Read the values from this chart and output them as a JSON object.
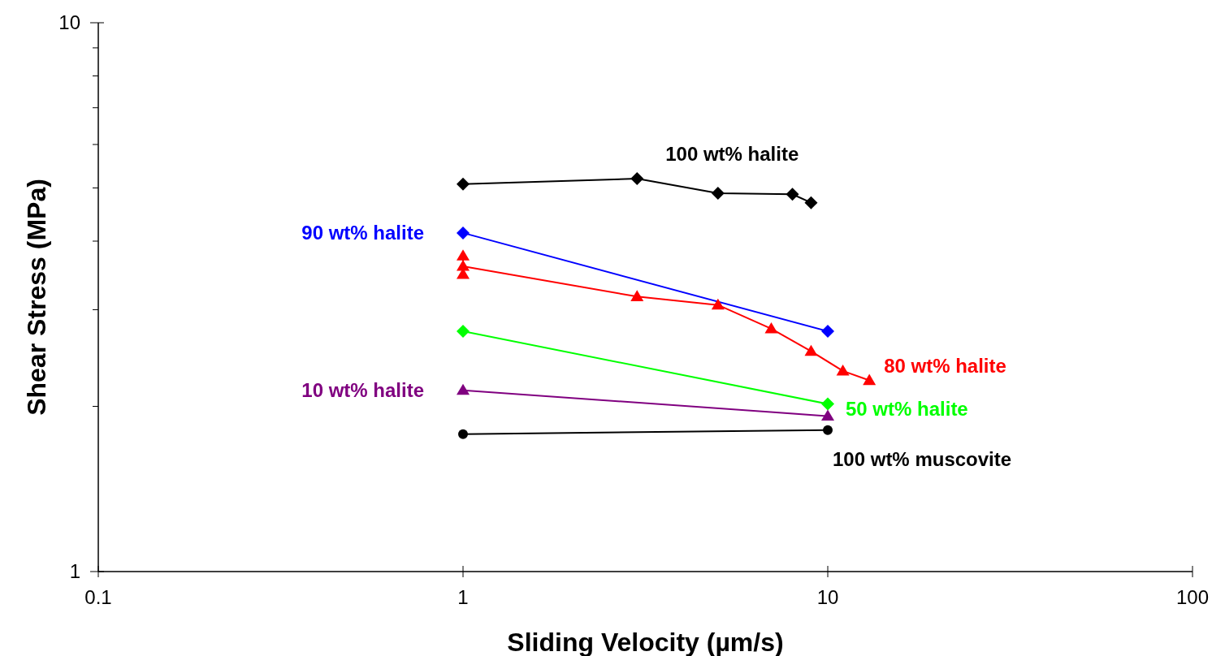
{
  "chart_data": {
    "type": "line",
    "xlabel": "Sliding Velocity (µm/s)",
    "ylabel": "Shear Stress (MPa)",
    "log": "xy",
    "xlim": [
      0.1,
      100
    ],
    "ylim": [
      1,
      10
    ],
    "xticks": [
      0.1,
      1,
      10,
      100
    ],
    "yticks": [
      1,
      10
    ],
    "grid": false,
    "series": [
      {
        "name": "100 wt% halite",
        "color": "#000000",
        "marker": "diamond",
        "x": [
          1,
          3,
          5,
          8,
          9
        ],
        "values": [
          5.08,
          5.2,
          4.89,
          4.87,
          4.7
        ]
      },
      {
        "name": "90 wt% halite",
        "color": "#0000ff",
        "marker": "diamond",
        "x": [
          1,
          10
        ],
        "values": [
          4.14,
          2.74
        ]
      },
      {
        "name": "80 wt% halite",
        "color": "#ff0000",
        "marker": "triangle",
        "x": [
          1,
          1,
          1,
          3,
          5,
          7,
          9,
          11,
          13
        ],
        "values": [
          3.76,
          3.48,
          3.6,
          3.17,
          3.06,
          2.77,
          2.52,
          2.32,
          2.23
        ]
      },
      {
        "name": "50 wt% halite",
        "color": "#00ff00",
        "marker": "diamond",
        "x": [
          1,
          10
        ],
        "values": [
          2.74,
          2.02
        ]
      },
      {
        "name": "10 wt% halite",
        "color": "#800080",
        "marker": "triangle",
        "x": [
          1,
          10
        ],
        "values": [
          2.14,
          1.92
        ]
      },
      {
        "name": "100 wt% muscovite",
        "color": "#000000",
        "marker": "circle",
        "x": [
          1,
          10
        ],
        "values": [
          1.78,
          1.81
        ]
      }
    ]
  }
}
